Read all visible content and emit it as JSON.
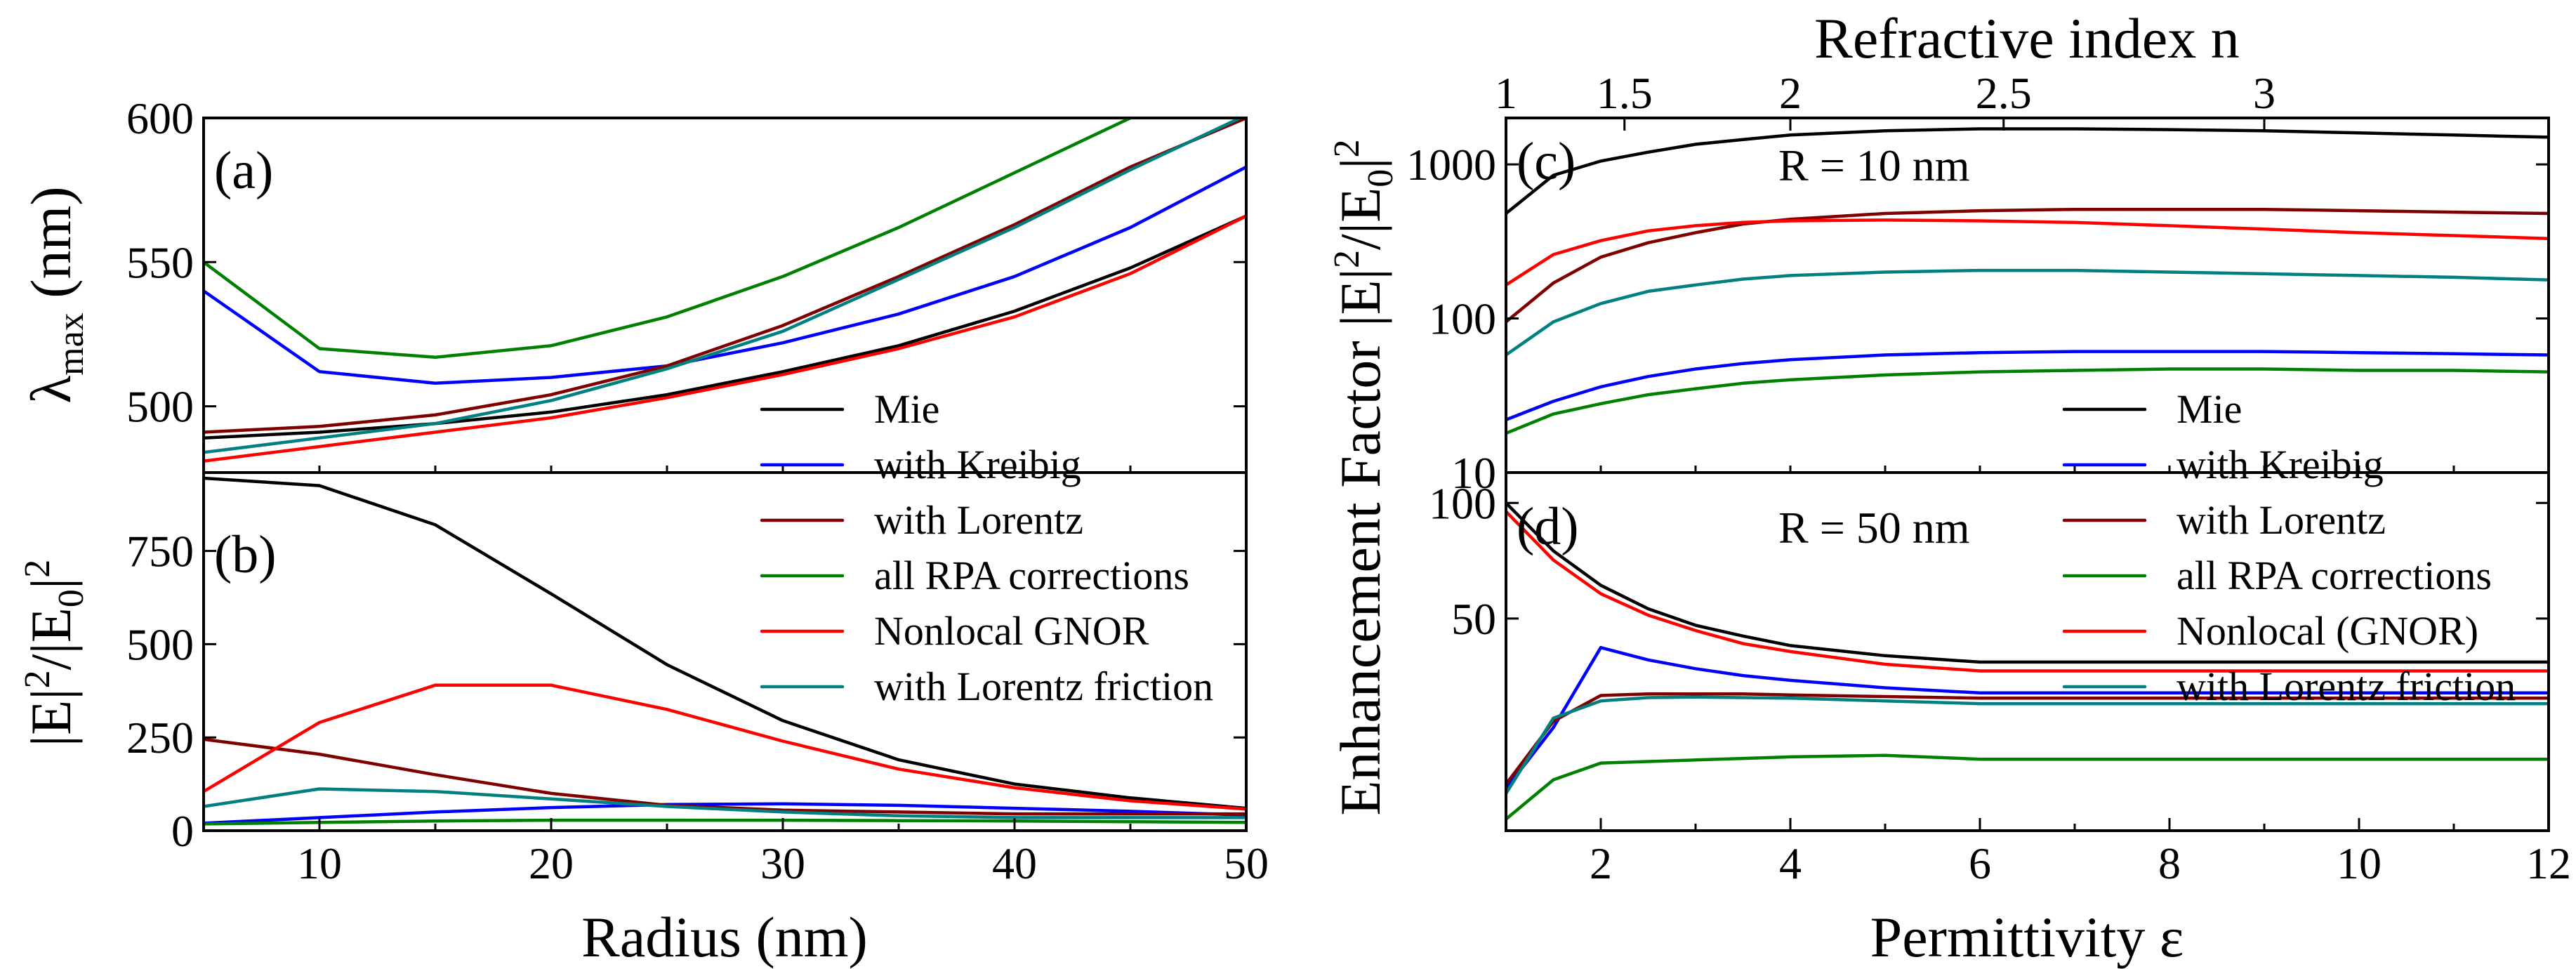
{
  "colors": {
    "Mie": "#000000",
    "Kreibig": "#0000ff",
    "Lorentz": "#800000",
    "RPA": "#008000",
    "GNOR": "#ff0000",
    "Friction": "#008080"
  },
  "chart_data": [
    {
      "id": "a",
      "type": "line",
      "panel_label": "(a)",
      "xlabel": "",
      "ylabel": "λmax (nm)",
      "ylabel_main": "λ",
      "ylabel_sub": "max",
      "ylabel_rest": " (nm)",
      "xlim": [
        5,
        50
      ],
      "ylim": [
        477,
        600
      ],
      "yticks": [
        500,
        550,
        600
      ],
      "xticks": [],
      "legend": {
        "position": "bottom-right",
        "entries": [
          "Mie",
          "with Kreibig"
        ]
      },
      "series": [
        {
          "name": "Mie",
          "key": "Mie",
          "x": [
            5,
            10,
            15,
            20,
            25,
            30,
            35,
            40,
            45,
            50
          ],
          "y": [
            489,
            491,
            494,
            498,
            504,
            512,
            521,
            533,
            548,
            566
          ]
        },
        {
          "name": "with Kreibig",
          "key": "Kreibig",
          "x": [
            5,
            10,
            15,
            20,
            25,
            30,
            35,
            40,
            45,
            50
          ],
          "y": [
            540,
            512,
            508,
            510,
            514,
            522,
            532,
            545,
            562,
            583
          ]
        },
        {
          "name": "with Lorentz",
          "key": "Lorentz",
          "x": [
            5,
            10,
            15,
            20,
            25,
            30,
            35,
            40,
            45,
            50
          ],
          "y": [
            491,
            493,
            497,
            504,
            514,
            528,
            545,
            563,
            583,
            600
          ]
        },
        {
          "name": "all RPA corrections",
          "key": "RPA",
          "x": [
            5,
            10,
            15,
            20,
            25,
            30,
            35,
            40,
            45
          ],
          "y": [
            550,
            520,
            517,
            521,
            531,
            545,
            562,
            581,
            600
          ]
        },
        {
          "name": "Nonlocal GNOR",
          "key": "GNOR",
          "x": [
            5,
            10,
            15,
            20,
            25,
            30,
            35,
            40,
            45,
            50
          ],
          "y": [
            481,
            486,
            491,
            496,
            503,
            511,
            520,
            531,
            546,
            566
          ]
        },
        {
          "name": "with Lorentz friction",
          "key": "Friction",
          "x": [
            5,
            10,
            15,
            20,
            25,
            30,
            35,
            40,
            45,
            50
          ],
          "y": [
            484,
            489,
            494,
            502,
            513,
            526,
            544,
            562,
            582,
            601
          ]
        }
      ]
    },
    {
      "id": "b",
      "type": "line",
      "panel_label": "(b)",
      "xlabel": "Radius (nm)",
      "ylabel": "|E|²/|E0|²",
      "xlim": [
        5,
        50
      ],
      "ylim": [
        0,
        960
      ],
      "yticks": [
        0,
        250,
        500,
        750
      ],
      "xticks": [
        10,
        20,
        30,
        40,
        50
      ],
      "legend": {
        "position": "right",
        "entries": [
          "with Lorentz",
          "all RPA corrections",
          "Nonlocal GNOR",
          "with Lorentz friction"
        ]
      },
      "series": [
        {
          "name": "Mie",
          "key": "Mie",
          "x": [
            5,
            10,
            15,
            20,
            25,
            30,
            35,
            40,
            45,
            50
          ],
          "y": [
            945,
            925,
            820,
            635,
            445,
            295,
            190,
            125,
            88,
            60
          ]
        },
        {
          "name": "with Kreibig",
          "key": "Kreibig",
          "x": [
            5,
            10,
            15,
            20,
            25,
            30,
            35,
            40,
            45,
            50
          ],
          "y": [
            20,
            35,
            50,
            62,
            70,
            72,
            68,
            60,
            52,
            42
          ]
        },
        {
          "name": "with Lorentz",
          "key": "Lorentz",
          "x": [
            5,
            10,
            15,
            20,
            25,
            30,
            35,
            40,
            45,
            50
          ],
          "y": [
            245,
            205,
            150,
            100,
            68,
            55,
            50,
            45,
            45,
            45
          ]
        },
        {
          "name": "all RPA corrections",
          "key": "RPA",
          "x": [
            5,
            10,
            15,
            20,
            25,
            30,
            35,
            40,
            45,
            50
          ],
          "y": [
            18,
            22,
            26,
            28,
            28,
            28,
            27,
            26,
            24,
            22
          ]
        },
        {
          "name": "Nonlocal GNOR",
          "key": "GNOR",
          "x": [
            5,
            10,
            15,
            20,
            25,
            30,
            35,
            40,
            45,
            50
          ],
          "y": [
            105,
            290,
            390,
            390,
            325,
            240,
            165,
            115,
            80,
            58
          ]
        },
        {
          "name": "with Lorentz friction",
          "key": "Friction",
          "x": [
            5,
            10,
            15,
            20,
            25,
            30,
            35,
            40,
            45,
            50
          ],
          "y": [
            65,
            112,
            105,
            85,
            65,
            50,
            40,
            35,
            35,
            35
          ]
        }
      ]
    },
    {
      "id": "c",
      "type": "line",
      "panel_label": "(c)",
      "annotation": "R = 10 nm",
      "xlabel": "",
      "top_xlabel": "Refractive index n",
      "top_ticks": [
        "1",
        "1.5",
        "2",
        "2.5",
        "3"
      ],
      "top_tick_values": [
        1,
        1.5,
        2,
        2.5,
        3
      ],
      "yscale": "log",
      "ylim": [
        10,
        2000
      ],
      "yticks": [
        10,
        100,
        1000
      ],
      "xlim": [
        1,
        12
      ],
      "xticks": [],
      "legend": {
        "position": "bottom-right",
        "entries": [
          "Mie",
          "with Kreibig"
        ]
      },
      "series": [
        {
          "name": "Mie",
          "key": "Mie",
          "x": [
            1,
            1.5,
            2,
            2.5,
            3,
            3.5,
            4,
            5,
            6,
            7,
            8,
            9,
            10,
            11,
            12
          ],
          "y": [
            480,
            850,
            1050,
            1200,
            1350,
            1450,
            1550,
            1650,
            1700,
            1700,
            1680,
            1650,
            1600,
            1550,
            1500
          ]
        },
        {
          "name": "with Kreibig",
          "key": "Kreibig",
          "x": [
            1,
            1.5,
            2,
            2.5,
            3,
            3.5,
            4,
            5,
            6,
            7,
            8,
            9,
            10,
            11,
            12
          ],
          "y": [
            22,
            29,
            36,
            42,
            47,
            51,
            54,
            58,
            60,
            61,
            61,
            61,
            60,
            59,
            58
          ]
        },
        {
          "name": "with Lorentz",
          "key": "Lorentz",
          "x": [
            1,
            1.5,
            2,
            2.5,
            3,
            3.5,
            4,
            5,
            6,
            7,
            8,
            9,
            10,
            11,
            12
          ],
          "y": [
            95,
            170,
            250,
            310,
            360,
            410,
            440,
            480,
            500,
            510,
            510,
            510,
            500,
            490,
            480
          ]
        },
        {
          "name": "all RPA corrections",
          "key": "RPA",
          "x": [
            1,
            1.5,
            2,
            2.5,
            3,
            3.5,
            4,
            5,
            6,
            7,
            8,
            9,
            10,
            11,
            12
          ],
          "y": [
            18,
            24,
            28,
            32,
            35,
            38,
            40,
            43,
            45,
            46,
            47,
            47,
            46,
            46,
            45
          ]
        },
        {
          "name": "Nonlocal GNOR",
          "key": "GNOR",
          "x": [
            1,
            1.5,
            2,
            2.5,
            3,
            3.5,
            4,
            5,
            6,
            7,
            8,
            9,
            10,
            11,
            12
          ],
          "y": [
            165,
            260,
            320,
            370,
            400,
            420,
            430,
            435,
            430,
            420,
            400,
            380,
            360,
            345,
            330
          ]
        },
        {
          "name": "with Lorentz friction",
          "key": "Friction",
          "x": [
            1,
            1.5,
            2,
            2.5,
            3,
            3.5,
            4,
            5,
            6,
            7,
            8,
            9,
            10,
            11,
            12
          ],
          "y": [
            58,
            95,
            125,
            150,
            165,
            180,
            190,
            200,
            205,
            205,
            200,
            195,
            190,
            185,
            178
          ]
        }
      ]
    },
    {
      "id": "d",
      "type": "line",
      "panel_label": "(d)",
      "annotation": "R = 50 nm",
      "xlabel": "Permittivity ε",
      "yscale": "log",
      "ylim": [
        14,
        120
      ],
      "yticks": [
        50,
        100
      ],
      "xlim": [
        1,
        12
      ],
      "xticks": [
        2,
        4,
        6,
        8,
        10,
        12
      ],
      "legend": {
        "position": "right",
        "entries": [
          "with Lorentz",
          "all RPA corrections",
          "Nonlocal (GNOR)",
          "with Lorentz friction"
        ]
      },
      "series": [
        {
          "name": "Mie",
          "key": "Mie",
          "x": [
            1,
            1.5,
            2,
            2.5,
            3,
            3.5,
            4,
            5,
            6,
            7,
            8,
            9,
            10,
            11,
            12
          ],
          "y": [
            100,
            75,
            61,
            53,
            48,
            45,
            42.5,
            40,
            38.5,
            38.5,
            38.5,
            38.5,
            38.5,
            38.5,
            38.5
          ]
        },
        {
          "name": "with Kreibig",
          "key": "Kreibig",
          "x": [
            1,
            1.5,
            2,
            2.5,
            3,
            3.5,
            4,
            5,
            6,
            7,
            8,
            9,
            10,
            11,
            12
          ],
          "y": [
            18,
            26,
            42,
            39,
            37,
            35.5,
            34.5,
            33,
            32,
            32,
            32,
            32,
            32,
            32,
            32
          ]
        },
        {
          "name": "with Lorentz",
          "key": "Lorentz",
          "x": [
            1,
            1.5,
            2,
            2.5,
            3,
            3.5,
            4,
            5,
            6,
            7,
            8,
            9,
            10,
            11,
            12
          ],
          "y": [
            18.5,
            27,
            31.5,
            31.8,
            31.8,
            31.8,
            31.6,
            31.3,
            31,
            31,
            31,
            31,
            31,
            31,
            31
          ]
        },
        {
          "name": "all RPA corrections",
          "key": "RPA",
          "x": [
            1,
            1.5,
            2,
            2.5,
            3,
            3.5,
            4,
            5,
            6,
            7,
            8,
            9,
            10,
            11,
            12
          ],
          "y": [
            15,
            19,
            21,
            21.2,
            21.4,
            21.6,
            21.8,
            22,
            21.5,
            21.5,
            21.5,
            21.5,
            21.5,
            21.5,
            21.5
          ]
        },
        {
          "name": "Nonlocal (GNOR)",
          "key": "GNOR",
          "x": [
            1,
            1.5,
            2,
            2.5,
            3,
            3.5,
            4,
            5,
            6,
            7,
            8,
            9,
            10,
            11,
            12
          ],
          "y": [
            95,
            71,
            58,
            51,
            46.5,
            43,
            41,
            38,
            36.5,
            36.5,
            36.5,
            36.5,
            36.5,
            36.5,
            36.5
          ]
        },
        {
          "name": "with Lorentz friction",
          "key": "Friction",
          "x": [
            1,
            1.5,
            2,
            2.5,
            3,
            3.5,
            4,
            5,
            6,
            7,
            8,
            9,
            10,
            11,
            12
          ],
          "y": [
            17.5,
            27.5,
            30.5,
            31.1,
            31.2,
            31.1,
            31,
            30.5,
            30,
            30,
            30,
            30,
            30,
            30,
            30
          ]
        }
      ]
    }
  ]
}
